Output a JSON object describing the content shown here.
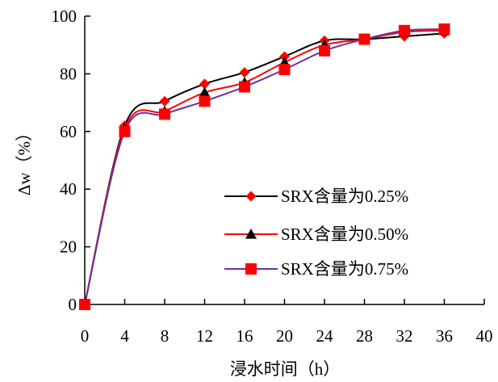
{
  "chart_data": {
    "type": "line",
    "title": "",
    "xlabel": "浸水时间（h）",
    "ylabel": "Δw（%）",
    "x": [
      0,
      4,
      8,
      12,
      16,
      20,
      24,
      28,
      32,
      36
    ],
    "xlim": [
      0,
      40
    ],
    "ylim": [
      0,
      100
    ],
    "xticks": [
      0,
      4,
      8,
      12,
      16,
      20,
      24,
      28,
      32,
      36,
      40
    ],
    "yticks": [
      0,
      20,
      40,
      60,
      80,
      100
    ],
    "grid": false,
    "legend_position": "center-right",
    "series": [
      {
        "name": "SRX含量为0.25%",
        "color": "#000000",
        "marker_color": "#ff0000",
        "marker": "diamond",
        "values": [
          0,
          62,
          70.5,
          76.5,
          80.5,
          86,
          91.5,
          92,
          93,
          94
        ]
      },
      {
        "name": "SRX含量为0.50%",
        "color": "#ff0000",
        "marker_color": "#000000",
        "marker": "triangle",
        "values": [
          0,
          61,
          67,
          73.5,
          77,
          84,
          90,
          92,
          94.5,
          95
        ]
      },
      {
        "name": "SRX含量为0.75%",
        "color": "#7030a0",
        "marker_color": "#ff0000",
        "marker": "square",
        "values": [
          0,
          60,
          66,
          70.5,
          75.5,
          81.5,
          88,
          92,
          95,
          95.5
        ]
      }
    ]
  }
}
